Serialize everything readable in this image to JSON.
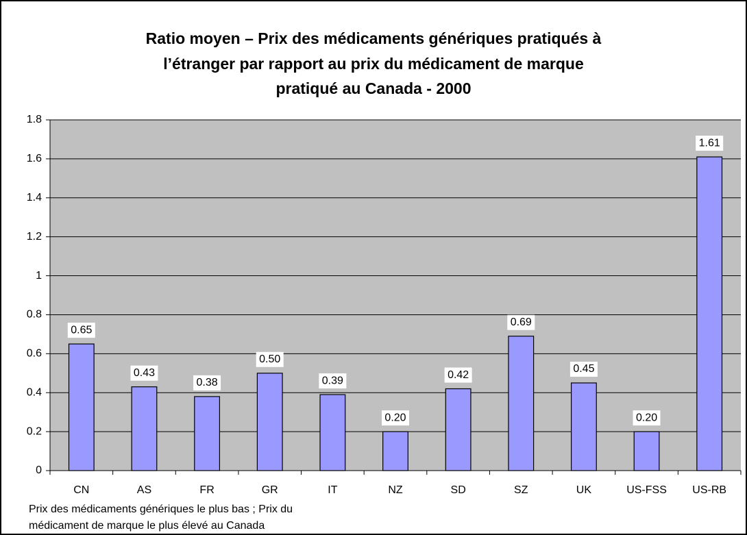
{
  "chart_data": {
    "type": "bar",
    "title": [
      "Ratio moyen – Prix des médicaments génériques pratiqués à",
      "l’étranger par rapport au prix du médicament de marque",
      "pratiqué au Canada - 2000"
    ],
    "categories": [
      "CN",
      "AS",
      "FR",
      "GR",
      "IT",
      "NZ",
      "SD",
      "SZ",
      "UK",
      "US-FSS",
      "US-RB"
    ],
    "values": [
      0.65,
      0.43,
      0.38,
      0.5,
      0.39,
      0.2,
      0.42,
      0.69,
      0.45,
      0.2,
      1.61
    ],
    "value_labels": [
      "0.65",
      "0.43",
      "0.38",
      "0.50",
      "0.39",
      "0.20",
      "0.42",
      "0.69",
      "0.45",
      "0.20",
      "1.61"
    ],
    "color": "#9999ff",
    "ylim": [
      0,
      1.8
    ],
    "yticks": [
      0,
      0.2,
      0.4,
      0.6,
      0.8,
      1,
      1.2,
      1.4,
      1.6,
      1.8
    ],
    "grid": true,
    "note": [
      "Prix des médicaments génériques le plus bas ; Prix du",
      "médicament de marque le plus élevé au Canada"
    ]
  }
}
